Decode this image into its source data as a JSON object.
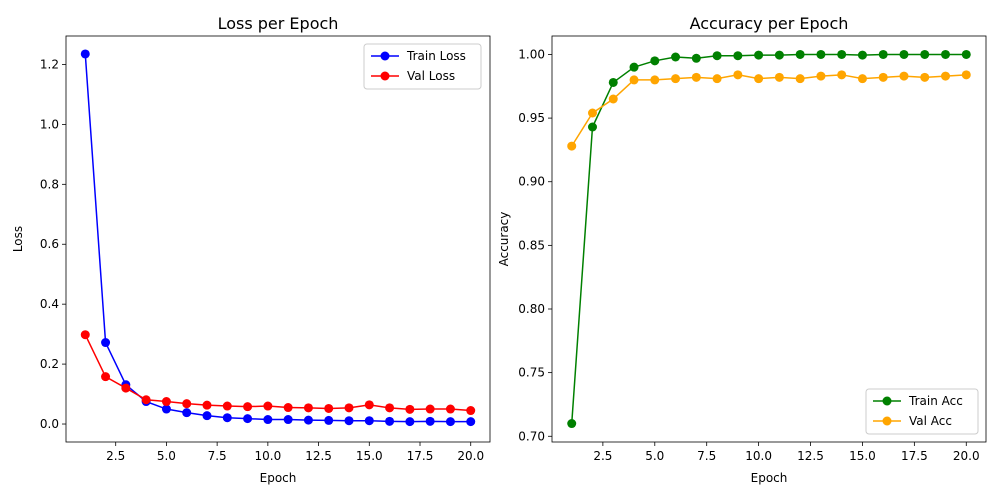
{
  "chart_data": [
    {
      "type": "line",
      "title": "Loss per Epoch",
      "xlabel": "Epoch",
      "ylabel": "Loss",
      "x": [
        1,
        2,
        3,
        4,
        5,
        6,
        7,
        8,
        9,
        10,
        11,
        12,
        13,
        14,
        15,
        16,
        17,
        18,
        19,
        20
      ],
      "xlim": [
        0.05,
        20.95
      ],
      "ylim": [
        -0.06,
        1.295
      ],
      "xticks": [
        2.5,
        5.0,
        7.5,
        10.0,
        12.5,
        15.0,
        17.5,
        20.0
      ],
      "xtick_labels": [
        "2.5",
        "5.0",
        "7.5",
        "10.0",
        "12.5",
        "15.0",
        "17.5",
        "20.0"
      ],
      "yticks": [
        0.0,
        0.2,
        0.4,
        0.6,
        0.8,
        1.0,
        1.2
      ],
      "ytick_labels": [
        "0.0",
        "0.2",
        "0.4",
        "0.6",
        "0.8",
        "1.0",
        "1.2"
      ],
      "grid": false,
      "legend_position": "top-right",
      "series": [
        {
          "name": "Train Loss",
          "color": "#0000ff",
          "values": [
            1.235,
            0.272,
            0.131,
            0.075,
            0.05,
            0.038,
            0.028,
            0.021,
            0.018,
            0.015,
            0.015,
            0.013,
            0.012,
            0.011,
            0.011,
            0.009,
            0.008,
            0.009,
            0.008,
            0.008
          ]
        },
        {
          "name": "Val Loss",
          "color": "#ff0000",
          "values": [
            0.298,
            0.158,
            0.12,
            0.081,
            0.075,
            0.068,
            0.063,
            0.06,
            0.058,
            0.06,
            0.055,
            0.054,
            0.052,
            0.054,
            0.064,
            0.054,
            0.049,
            0.05,
            0.05,
            0.045
          ]
        }
      ]
    },
    {
      "type": "line",
      "title": "Accuracy per Epoch",
      "xlabel": "Epoch",
      "ylabel": "Accuracy",
      "x": [
        1,
        2,
        3,
        4,
        5,
        6,
        7,
        8,
        9,
        10,
        11,
        12,
        13,
        14,
        15,
        16,
        17,
        18,
        19,
        20
      ],
      "xlim": [
        0.05,
        20.95
      ],
      "ylim": [
        0.6955,
        1.0145
      ],
      "xticks": [
        2.5,
        5.0,
        7.5,
        10.0,
        12.5,
        15.0,
        17.5,
        20.0
      ],
      "xtick_labels": [
        "2.5",
        "5.0",
        "7.5",
        "10.0",
        "12.5",
        "15.0",
        "17.5",
        "20.0"
      ],
      "yticks": [
        0.7,
        0.75,
        0.8,
        0.85,
        0.9,
        0.95,
        1.0
      ],
      "ytick_labels": [
        "0.70",
        "0.75",
        "0.80",
        "0.85",
        "0.90",
        "0.95",
        "1.00"
      ],
      "grid": false,
      "legend_position": "bottom-right",
      "series": [
        {
          "name": "Train Acc",
          "color": "#008000",
          "values": [
            0.71,
            0.943,
            0.978,
            0.99,
            0.995,
            0.998,
            0.997,
            0.999,
            0.999,
            0.9995,
            0.9995,
            1.0,
            1.0,
            1.0,
            0.9995,
            1.0,
            1.0,
            1.0,
            1.0,
            1.0
          ]
        },
        {
          "name": "Val Acc",
          "color": "#ffa500",
          "values": [
            0.928,
            0.954,
            0.965,
            0.98,
            0.98,
            0.981,
            0.982,
            0.981,
            0.984,
            0.981,
            0.982,
            0.981,
            0.983,
            0.984,
            0.981,
            0.982,
            0.983,
            0.982,
            0.983,
            0.984
          ]
        }
      ]
    }
  ]
}
